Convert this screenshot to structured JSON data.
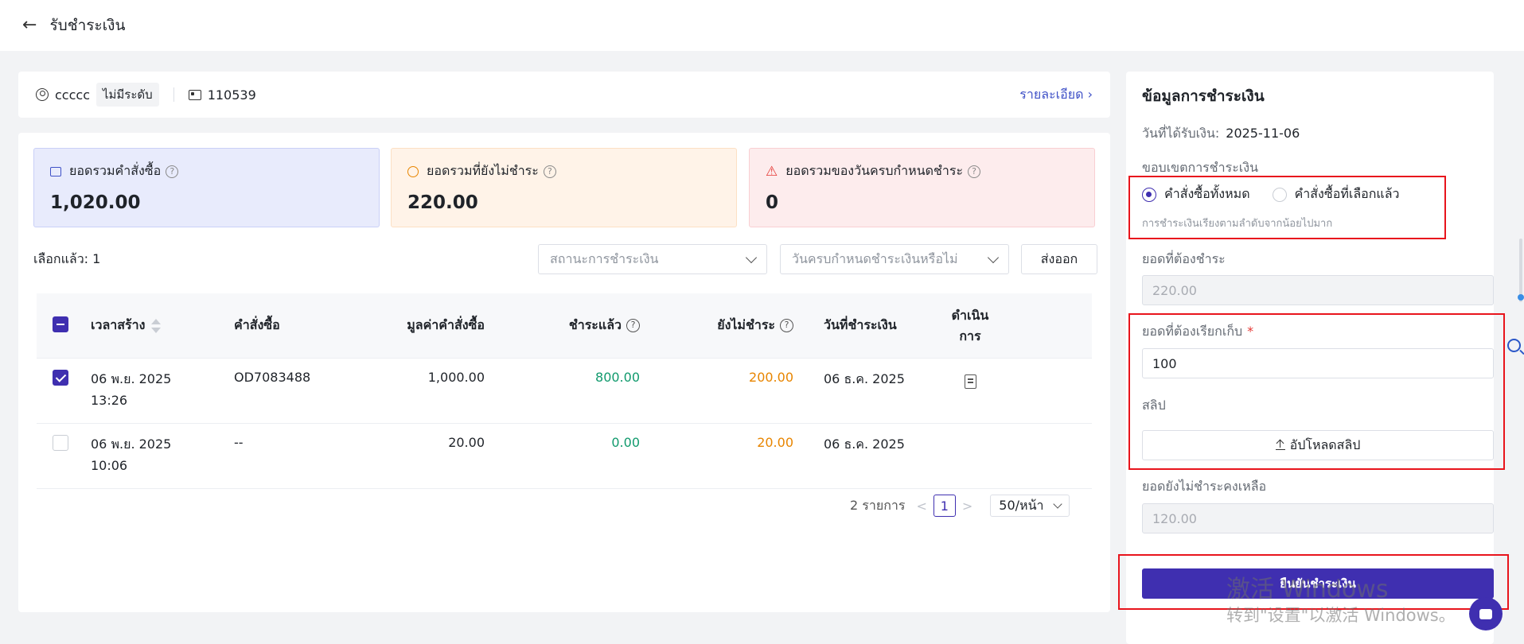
{
  "header": {
    "back_icon": "arrow-left-icon",
    "title": "รับชำระเงิน"
  },
  "customer": {
    "name": "ccccc",
    "level": "ไม่มีระดับ",
    "id": "110539",
    "detail_link": "รายละเอียด"
  },
  "summary": [
    {
      "label": "ยอดรวมคำสั่งซื้อ",
      "value": "1,020.00",
      "icon": "wallet-icon"
    },
    {
      "label": "ยอดรวมที่ยังไม่ชำระ",
      "value": "220.00",
      "icon": "coin-icon"
    },
    {
      "label": "ยอดรวมของวันครบกำหนดชำระ",
      "value": "0",
      "icon": "warning-icon"
    }
  ],
  "filters": {
    "selected_text": "เลือกแล้ว: 1",
    "payment_status_placeholder": "สถานะการชำระเงิน",
    "due_placeholder": "วันครบกำหนดชำระเงินหรือไม่",
    "export_label": "ส่งออก"
  },
  "table": {
    "headers": {
      "time": "เวลาสร้าง",
      "order": "คำสั่งซื้อ",
      "amount": "มูลค่าคำสั่งซื้อ",
      "paid": "ชำระแล้ว",
      "unpaid": "ยังไม่ชำระ",
      "pay_date": "วันที่ชำระเงิน",
      "action": "ดำเนินการ"
    },
    "rows": [
      {
        "checked": true,
        "date": "06 พ.ย. 2025",
        "time": "13:26",
        "order": "OD7083488",
        "amount": "1,000.00",
        "paid": "800.00",
        "unpaid": "200.00",
        "pay_date": "06 ธ.ค. 2025",
        "has_action": true
      },
      {
        "checked": false,
        "date": "06 พ.ย. 2025",
        "time": "10:06",
        "order": "--",
        "amount": "20.00",
        "paid": "0.00",
        "unpaid": "20.00",
        "pay_date": "06 ธ.ค. 2025",
        "has_action": false
      }
    ]
  },
  "pagination": {
    "total": "2 รายการ",
    "prev": "<",
    "page": "1",
    "next": ">",
    "page_size": "50/หน้า"
  },
  "payment": {
    "title": "ข้อมูลการชำระเงิน",
    "date_label": "วันที่ได้รับเงิน:",
    "date_value": "2025-11-06",
    "scope_label": "ขอบเขตการชำระเงิน",
    "scope_all": "คำสั่งซื้อทั้งหมด",
    "scope_selected": "คำสั่งซื้อที่เลือกแล้ว",
    "scope_hint": "การชำระเงินเรียงตามลำดับจากน้อยไปมาก",
    "due_label": "ยอดที่ต้องชำระ",
    "due_value": "220.00",
    "collect_label": "ยอดที่ต้องเรียกเก็บ",
    "required_mark": "*",
    "collect_value": "100",
    "slip_label": "สลิป",
    "upload_label": "อัปโหลดสลิป",
    "remaining_label": "ยอดยังไม่ชำระคงเหลือ",
    "remaining_value": "120.00",
    "submit_label": "ยืนยันชำระเงิน"
  },
  "watermark": {
    "line1": "激活 Windows",
    "line2": "转到\"设置\"以激活 Windows。"
  },
  "colors": {
    "primary": "#3f2fb0",
    "paid_green": "#119a6d",
    "unpaid_orange": "#e88500",
    "highlight_red": "#e8141c"
  }
}
